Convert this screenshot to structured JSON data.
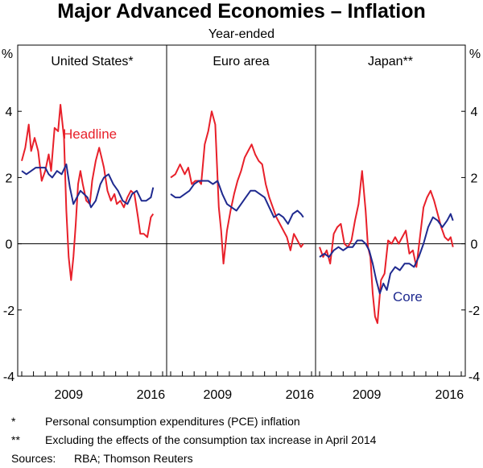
{
  "title": "Major Advanced Economies – Inflation",
  "subtitle": "Year-ended",
  "colors": {
    "headline": "#e8202a",
    "core": "#1f2a8f",
    "axis": "#000000"
  },
  "chart_data": {
    "type": "line",
    "y_unit": "%",
    "ylim": [
      -4,
      6
    ],
    "y_ticks": [
      -4,
      -2,
      0,
      2,
      4
    ],
    "y_tick_labels": [
      "-4",
      "-2",
      "0",
      "2",
      "4"
    ],
    "x_range": [
      2005.0,
      2017.0
    ],
    "x_tick_labels": [
      "2009",
      "2016"
    ],
    "annotations": {
      "headline": "Headline",
      "core": "Core"
    },
    "panels": [
      {
        "name": "United States*",
        "series": [
          {
            "name": "Headline",
            "x": [
              2005.0,
              2005.3,
              2005.6,
              2005.8,
              2006.1,
              2006.4,
              2006.7,
              2007.0,
              2007.3,
              2007.5,
              2007.8,
              2008.1,
              2008.3,
              2008.6,
              2008.8,
              2009.0,
              2009.2,
              2009.4,
              2009.6,
              2009.8,
              2010.0,
              2010.2,
              2010.5,
              2010.8,
              2011.0,
              2011.3,
              2011.6,
              2011.8,
              2012.0,
              2012.3,
              2012.6,
              2012.9,
              2013.1,
              2013.4,
              2013.7,
              2014.0,
              2014.3,
              2014.6,
              2014.9,
              2015.1,
              2015.4,
              2015.7,
              2016.0,
              2016.2
            ],
            "y": [
              2.5,
              2.9,
              3.6,
              2.8,
              3.2,
              2.8,
              1.9,
              2.2,
              2.7,
              2.2,
              3.5,
              3.4,
              4.2,
              3.2,
              1.0,
              -0.4,
              -1.1,
              -0.4,
              0.6,
              1.8,
              2.2,
              1.8,
              1.3,
              1.2,
              1.9,
              2.5,
              2.9,
              2.6,
              2.3,
              1.6,
              1.3,
              1.5,
              1.2,
              1.3,
              1.1,
              1.4,
              1.6,
              1.5,
              0.8,
              0.3,
              0.3,
              0.2,
              0.8,
              0.9
            ]
          },
          {
            "name": "Core",
            "x": [
              2005.0,
              2005.4,
              2005.8,
              2006.2,
              2006.6,
              2007.0,
              2007.3,
              2007.6,
              2008.0,
              2008.4,
              2008.8,
              2009.1,
              2009.4,
              2009.7,
              2010.0,
              2010.3,
              2010.6,
              2010.9,
              2011.3,
              2011.7,
              2012.0,
              2012.4,
              2012.8,
              2013.2,
              2013.6,
              2014.0,
              2014.4,
              2014.8,
              2015.2,
              2015.6,
              2016.0,
              2016.2
            ],
            "y": [
              2.2,
              2.1,
              2.2,
              2.3,
              2.3,
              2.3,
              2.1,
              2.0,
              2.2,
              2.1,
              2.4,
              1.7,
              1.2,
              1.4,
              1.6,
              1.5,
              1.4,
              1.1,
              1.3,
              1.8,
              2.0,
              2.1,
              1.8,
              1.6,
              1.3,
              1.2,
              1.5,
              1.6,
              1.3,
              1.3,
              1.4,
              1.7
            ]
          }
        ]
      },
      {
        "name": "Euro area",
        "series": [
          {
            "name": "Headline",
            "x": [
              2005.0,
              2005.4,
              2005.8,
              2006.2,
              2006.5,
              2006.8,
              2007.1,
              2007.4,
              2007.6,
              2007.9,
              2008.2,
              2008.5,
              2008.8,
              2009.1,
              2009.3,
              2009.5,
              2009.8,
              2010.1,
              2010.4,
              2010.7,
              2011.0,
              2011.3,
              2011.6,
              2011.9,
              2012.2,
              2012.5,
              2012.8,
              2013.1,
              2013.4,
              2013.7,
              2014.0,
              2014.3,
              2014.6,
              2014.9,
              2015.2,
              2015.5,
              2015.8,
              2016.1,
              2016.3
            ],
            "y": [
              2.0,
              2.1,
              2.4,
              2.1,
              2.3,
              1.8,
              1.9,
              1.9,
              1.8,
              3.0,
              3.4,
              4.0,
              3.6,
              1.1,
              0.4,
              -0.6,
              0.4,
              1.0,
              1.5,
              1.9,
              2.2,
              2.6,
              2.8,
              3.0,
              2.7,
              2.5,
              2.4,
              1.8,
              1.4,
              1.1,
              0.8,
              0.6,
              0.4,
              0.2,
              -0.2,
              0.3,
              0.1,
              -0.1,
              0.0
            ]
          },
          {
            "name": "Core",
            "x": [
              2005.0,
              2005.4,
              2005.8,
              2006.2,
              2006.6,
              2007.0,
              2007.4,
              2007.8,
              2008.2,
              2008.6,
              2009.0,
              2009.4,
              2009.8,
              2010.2,
              2010.6,
              2011.0,
              2011.4,
              2011.8,
              2012.2,
              2012.6,
              2013.0,
              2013.4,
              2013.8,
              2014.2,
              2014.6,
              2015.0,
              2015.4,
              2015.8,
              2016.1,
              2016.3
            ],
            "y": [
              1.5,
              1.4,
              1.4,
              1.5,
              1.6,
              1.8,
              1.9,
              1.9,
              1.9,
              1.8,
              1.9,
              1.5,
              1.2,
              1.1,
              1.0,
              1.2,
              1.4,
              1.6,
              1.6,
              1.5,
              1.4,
              1.1,
              0.8,
              0.9,
              0.8,
              0.6,
              0.9,
              1.0,
              0.9,
              0.8
            ]
          }
        ]
      },
      {
        "name": "Japan**",
        "series": [
          {
            "name": "Headline",
            "x": [
              2005.0,
              2005.3,
              2005.6,
              2005.9,
              2006.2,
              2006.5,
              2006.8,
              2007.1,
              2007.4,
              2007.7,
              2008.0,
              2008.3,
              2008.6,
              2008.9,
              2009.1,
              2009.3,
              2009.5,
              2009.7,
              2009.9,
              2010.2,
              2010.5,
              2010.8,
              2011.1,
              2011.4,
              2011.7,
              2012.0,
              2012.3,
              2012.6,
              2012.9,
              2013.2,
              2013.5,
              2013.8,
              2014.1,
              2014.4,
              2014.7,
              2015.0,
              2015.3,
              2015.6,
              2015.9,
              2016.1,
              2016.3
            ],
            "y": [
              -0.1,
              -0.4,
              -0.2,
              -0.6,
              0.3,
              0.5,
              0.6,
              0.0,
              -0.1,
              0.1,
              0.7,
              1.2,
              2.2,
              1.0,
              -0.1,
              -0.4,
              -1.5,
              -2.2,
              -2.4,
              -1.1,
              -0.9,
              0.1,
              0.0,
              0.2,
              0.0,
              0.2,
              0.4,
              -0.3,
              -0.2,
              -0.7,
              0.2,
              1.1,
              1.4,
              1.6,
              1.3,
              0.9,
              0.5,
              0.2,
              0.1,
              0.2,
              -0.1
            ]
          },
          {
            "name": "Core",
            "x": [
              2005.0,
              2005.4,
              2005.8,
              2006.2,
              2006.6,
              2007.0,
              2007.4,
              2007.8,
              2008.2,
              2008.6,
              2008.9,
              2009.2,
              2009.5,
              2009.8,
              2010.1,
              2010.4,
              2010.7,
              2011.0,
              2011.4,
              2011.8,
              2012.2,
              2012.6,
              2013.0,
              2013.4,
              2013.8,
              2014.2,
              2014.6,
              2015.0,
              2015.4,
              2015.8,
              2016.1,
              2016.3
            ],
            "y": [
              -0.4,
              -0.3,
              -0.4,
              -0.2,
              -0.1,
              -0.2,
              -0.1,
              -0.1,
              0.1,
              0.1,
              0.0,
              -0.2,
              -0.6,
              -1.1,
              -1.5,
              -1.2,
              -1.4,
              -0.9,
              -0.7,
              -0.8,
              -0.6,
              -0.6,
              -0.7,
              -0.4,
              0.0,
              0.5,
              0.8,
              0.7,
              0.5,
              0.7,
              0.9,
              0.7
            ]
          }
        ]
      }
    ]
  },
  "footnotes": [
    {
      "mark": "*",
      "text": "Personal consumption expenditures (PCE) inflation"
    },
    {
      "mark": "**",
      "text": "Excluding the effects of the consumption tax increase in April 2014"
    }
  ],
  "sources": {
    "label": "Sources:",
    "text": "RBA; Thomson Reuters"
  }
}
